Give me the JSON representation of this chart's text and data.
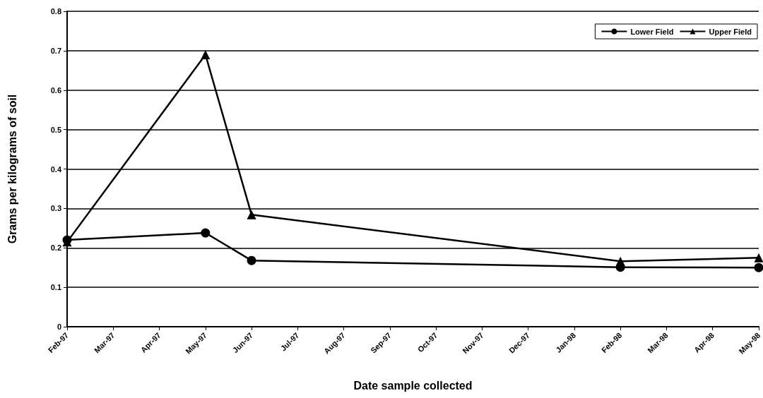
{
  "chart_data": {
    "type": "line",
    "xlabel": "Date sample collected",
    "ylabel": "Grams per kilograms of soil",
    "categories": [
      "Feb-97",
      "Mar-97",
      "Apr-97",
      "May-97",
      "Jun-97",
      "Jul-97",
      "Aug-97",
      "Sep-97",
      "Oct-97",
      "Nov-97",
      "Dec-97",
      "Jan-98",
      "Feb-98",
      "Mar-98",
      "Apr-98",
      "May-98"
    ],
    "series": [
      {
        "name": "Lower Field",
        "color": "#000000",
        "marker": "circle",
        "x": [
          "Feb-97",
          "May-97",
          "Jun-97",
          "Feb-98",
          "May-98"
        ],
        "values": [
          0.22,
          0.238,
          0.168,
          0.151,
          0.15
        ]
      },
      {
        "name": "Upper Field",
        "color": "#000000",
        "marker": "triangle",
        "x": [
          "Feb-97",
          "May-97",
          "Jun-97",
          "Feb-98",
          "May-98"
        ],
        "values": [
          0.215,
          0.69,
          0.284,
          0.166,
          0.175
        ]
      }
    ],
    "ylim": [
      0,
      0.8
    ],
    "yticks": [
      0,
      0.1,
      0.2,
      0.3,
      0.4,
      0.5,
      0.6,
      0.7,
      0.8
    ],
    "grid": "y",
    "legend": "top right",
    "line_style": "solid"
  }
}
